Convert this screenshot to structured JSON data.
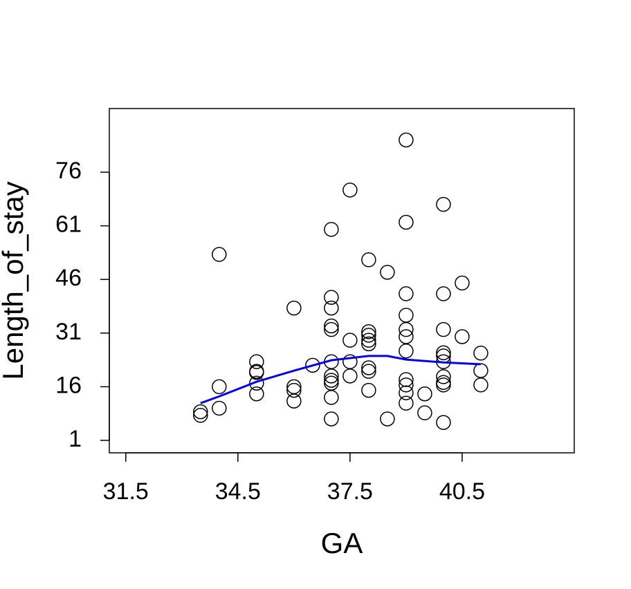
{
  "chart_data": {
    "type": "scatter",
    "x_label": "GA",
    "y_label": "Length_of_stay",
    "xlim": [
      31.06,
      43.5
    ],
    "ylim": [
      -2.48,
      93.8
    ],
    "xticks": [
      31.5,
      34.5,
      37.5,
      40.5
    ],
    "yticks": [
      1,
      16,
      31,
      46,
      61,
      76
    ],
    "color": "#000000",
    "x": [
      33.5,
      33.5,
      34,
      34,
      34,
      35,
      35,
      35,
      35,
      35,
      36,
      36,
      36,
      36,
      36.5,
      37,
      37,
      37,
      37,
      37,
      37,
      37,
      37,
      37,
      37,
      37,
      37.5,
      37.5,
      37.5,
      37.5,
      38,
      38,
      38,
      38,
      38,
      38,
      38,
      38,
      38.5,
      38.5,
      39,
      39,
      39,
      39,
      39,
      39,
      39,
      39,
      39,
      39,
      39,
      39.5,
      39.5,
      40,
      40,
      40,
      40,
      40,
      40,
      40,
      40,
      40,
      40,
      40.5,
      40.5,
      41,
      41,
      41
    ],
    "values": [
      8,
      9,
      53,
      16,
      10,
      23,
      20,
      20.3,
      17,
      14,
      38,
      16,
      15,
      12,
      22,
      60,
      41,
      38,
      33,
      32,
      23,
      19,
      17.8,
      17,
      13,
      7,
      71,
      29,
      23,
      19,
      51.5,
      31.4,
      30.4,
      29,
      28,
      21.3,
      20.3,
      15,
      48,
      7,
      85,
      62,
      42,
      36,
      32,
      30,
      26,
      18,
      16.5,
      14.3,
      11.4,
      14,
      8.7,
      67,
      42,
      32,
      25.5,
      24.6,
      23,
      18.8,
      17.2,
      16.5,
      6,
      45,
      30,
      25.4,
      20.5,
      16.5
    ],
    "trend": {
      "color": "#0000ee",
      "x": [
        33.5,
        34,
        35,
        36,
        37,
        38,
        38.5,
        39,
        40,
        41
      ],
      "values": [
        11.4,
        13.3,
        17.4,
        20.5,
        23.4,
        24.6,
        24.6,
        23.6,
        22.8,
        22.3
      ]
    }
  }
}
